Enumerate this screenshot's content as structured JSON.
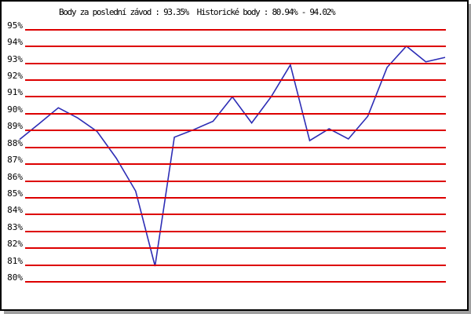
{
  "title": "Body za poslední závod : 93.35%  Historické body : 80.94% - 94.02%",
  "colors": {
    "grid": "#dd0000",
    "line": "#2d2db5",
    "frame": "#000000",
    "shadow": "#a0a0a0",
    "background": "#ffffff",
    "text": "#000000"
  },
  "chart_data": {
    "type": "line",
    "title": "Body za poslední závod : 93.35%  Historické body : 80.94% - 94.02%",
    "last_race_points_label": "93.35%",
    "historical_min_label": "80.94%",
    "historical_max_label": "94.02%",
    "y_ticks": [
      "95%",
      "94%",
      "93%",
      "92%",
      "91%",
      "90%",
      "89%",
      "88%",
      "87%",
      "86%",
      "85%",
      "84%",
      "83%",
      "82%",
      "81%",
      "80%"
    ],
    "ylim": [
      80,
      95
    ],
    "grid": true,
    "legend": "none",
    "x_axis_labels": "none",
    "values": [
      88.47,
      89.4,
      90.35,
      89.75,
      88.95,
      87.35,
      85.4,
      80.94,
      88.6,
      89.05,
      89.55,
      91.0,
      89.45,
      91.0,
      92.9,
      88.4,
      89.1,
      88.5,
      89.85,
      92.75,
      94.02,
      93.08,
      93.35
    ]
  }
}
